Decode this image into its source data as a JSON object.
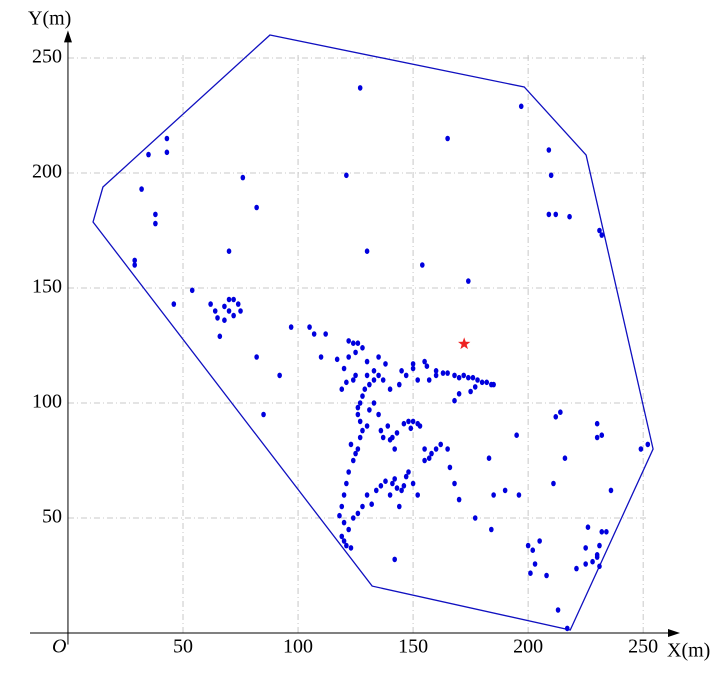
{
  "chart_data": {
    "type": "scatter",
    "x_label": "X(m)",
    "y_label": "Y(m)",
    "origin_label": "O",
    "xlim": [
      -16.5,
      266
    ],
    "ylim": [
      -5,
      262
    ],
    "xticks": [
      50,
      100,
      150,
      200,
      250
    ],
    "yticks": [
      50,
      100,
      150,
      200,
      250
    ],
    "grid": true,
    "color": "#0000dd",
    "x": [
      127,
      197,
      165,
      43,
      43,
      35,
      209,
      121,
      210,
      76,
      32,
      82,
      38,
      38,
      209,
      212,
      218,
      231,
      232,
      70,
      130,
      29,
      29,
      154,
      174,
      54,
      46,
      70,
      72,
      74,
      75,
      68,
      70,
      64,
      65,
      68,
      72,
      62,
      66,
      82,
      97,
      105,
      107,
      112,
      110,
      117,
      92,
      85,
      122,
      124,
      126,
      122,
      125,
      128,
      130,
      133,
      135,
      138,
      145,
      150,
      155,
      156,
      160,
      163,
      165,
      168,
      170,
      172,
      174,
      176,
      178,
      180,
      182,
      184,
      185,
      177,
      175,
      170,
      168,
      160,
      157,
      152,
      150,
      147,
      144,
      140,
      137,
      135,
      133,
      131,
      130,
      129,
      128,
      127,
      126,
      125,
      124,
      121,
      120,
      119,
      126,
      127,
      130,
      131,
      133,
      135,
      136,
      137,
      140,
      139,
      141,
      142,
      143,
      128,
      127,
      126,
      125,
      123,
      124,
      122,
      121,
      120,
      119,
      118,
      120,
      119,
      120,
      121,
      123,
      122,
      124,
      126,
      128,
      130,
      132,
      134,
      136,
      138,
      140,
      141,
      142,
      143,
      145,
      146,
      147,
      148,
      144,
      150,
      152,
      155,
      157,
      158,
      160,
      162,
      165,
      166,
      168,
      170,
      148,
      150,
      152,
      153,
      146,
      149,
      155,
      142,
      183,
      185,
      184,
      177,
      190,
      195,
      196,
      200,
      202,
      205,
      203,
      201,
      208,
      213,
      217,
      211,
      212,
      214,
      216,
      221,
      225,
      226,
      225,
      228,
      230,
      231,
      232,
      234,
      236,
      230,
      230,
      232,
      249,
      252,
      231,
      230
    ],
    "values": [
      237,
      229,
      215,
      215,
      209,
      208,
      210,
      199,
      199,
      198,
      193,
      185,
      182,
      178,
      182,
      182,
      181,
      175,
      173,
      166,
      166,
      162,
      160,
      160,
      153,
      149,
      143,
      145,
      145,
      143,
      140,
      142,
      140,
      140,
      137,
      136,
      138,
      143,
      129,
      120,
      133,
      133,
      130,
      130,
      120,
      119,
      112,
      95,
      127,
      126,
      126,
      120,
      122,
      124,
      118,
      114,
      120,
      117,
      114,
      117,
      118,
      116,
      114,
      113,
      113,
      112,
      111,
      112,
      111,
      111,
      110,
      109,
      109,
      108,
      108,
      107,
      105,
      104,
      101,
      112,
      110,
      110,
      115,
      112,
      108,
      106,
      110,
      112,
      110,
      108,
      112,
      106,
      103,
      100,
      98,
      112,
      110,
      109,
      115,
      106,
      95,
      92,
      90,
      97,
      100,
      95,
      88,
      85,
      84,
      90,
      85,
      80,
      87,
      88,
      85,
      80,
      78,
      82,
      75,
      70,
      65,
      60,
      55,
      51,
      48,
      42,
      40,
      38,
      37,
      45,
      50,
      52,
      55,
      60,
      56,
      62,
      64,
      66,
      60,
      65,
      67,
      63,
      62,
      64,
      68,
      70,
      55,
      65,
      60,
      80,
      76,
      78,
      80,
      82,
      80,
      72,
      65,
      58,
      92,
      92,
      91,
      90,
      91,
      89,
      75,
      32,
      76,
      60,
      45,
      50,
      62,
      86,
      60,
      38,
      36,
      40,
      30,
      26,
      25,
      10,
      2,
      65,
      94,
      96,
      76,
      28,
      37,
      46,
      30,
      31,
      33,
      38,
      44,
      44,
      62,
      85,
      91,
      86,
      80,
      82,
      29,
      34
    ],
    "hull": {
      "color": "#1010c0",
      "x": [
        87.8,
        198.3,
        225.2,
        254.3,
        218.3,
        132.2,
        10.9,
        15.2
      ],
      "y": [
        260,
        237.4,
        207.8,
        80,
        1.3,
        20.4,
        178.7,
        193.9
      ]
    },
    "star": {
      "color": "#ee2222",
      "x": 172.2,
      "y": 125.7
    }
  }
}
